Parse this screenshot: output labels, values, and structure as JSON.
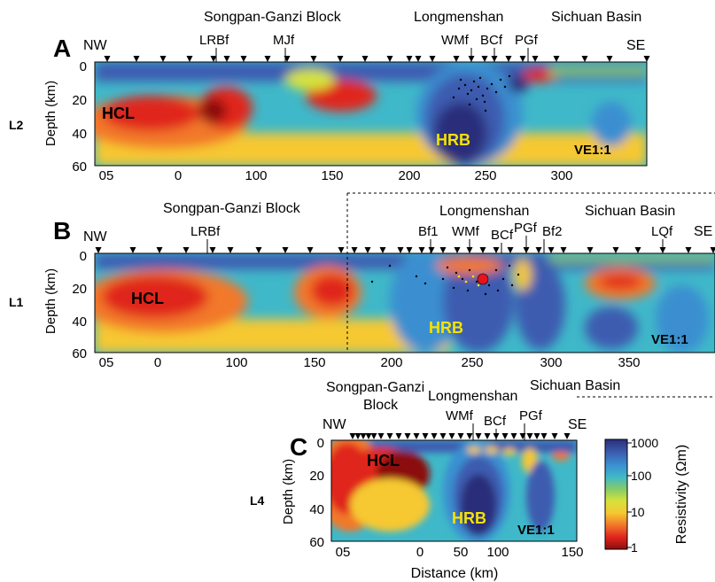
{
  "chart_data": [
    {
      "type": "heatmap",
      "panel_letter": "A",
      "line_label": "L2",
      "region_labels": [
        "Songpan-Ganzi Block",
        "Longmenshan",
        "Sichuan Basin"
      ],
      "fault_labels": [
        "LRBf",
        "MJf",
        "WMf",
        "BCf",
        "PGf"
      ],
      "end_labels": [
        "NW",
        "SE"
      ],
      "ylabel": "Depth (km)",
      "yticks": [
        0,
        20,
        40,
        60
      ],
      "xticks": [
        "05",
        "0",
        "100",
        "150",
        "200",
        "250",
        "300"
      ],
      "xlim": [
        -100,
        350
      ],
      "ylim": [
        0,
        60
      ],
      "annotations": [
        "HCL",
        "HRB",
        "VE1:1"
      ],
      "features": [
        {
          "label": "HCL",
          "resistivity": "low",
          "x": [
            -100,
            110
          ],
          "depth": [
            15,
            55
          ]
        },
        {
          "label": "HRB",
          "resistivity": "high",
          "x": [
            200,
            270
          ],
          "depth": [
            10,
            60
          ]
        }
      ]
    },
    {
      "type": "heatmap",
      "panel_letter": "B",
      "line_label": "L1",
      "region_labels": [
        "Songpan-Ganzi Block",
        "Longmenshan",
        "Sichuan Basin"
      ],
      "fault_labels": [
        "LRBf",
        "Bf1",
        "WMf",
        "BCf",
        "PGf",
        "Bf2",
        "LQf"
      ],
      "end_labels": [
        "NW",
        "SE"
      ],
      "ylabel": "Depth (km)",
      "yticks": [
        0,
        20,
        40,
        60
      ],
      "xticks": [
        "05",
        "0",
        "100",
        "150",
        "200",
        "250",
        "300",
        "350"
      ],
      "xlim": [
        -100,
        390
      ],
      "ylim": [
        0,
        60
      ],
      "annotations": [
        "HCL",
        "HRB",
        "VE1:1"
      ],
      "features": [
        {
          "label": "HCL",
          "resistivity": "low",
          "x": [
            -100,
            160
          ],
          "depth": [
            15,
            55
          ]
        },
        {
          "label": "HRB",
          "resistivity": "high",
          "x": [
            195,
            265
          ],
          "depth": [
            10,
            60
          ]
        }
      ]
    },
    {
      "type": "heatmap",
      "panel_letter": "C",
      "line_label": "L4",
      "region_labels": [
        "Songpan-Ganzi",
        "Block",
        "Longmenshan",
        "Sichuan Basin"
      ],
      "fault_labels": [
        "WMf",
        "BCf",
        "PGf"
      ],
      "end_labels": [
        "NW",
        "SE"
      ],
      "ylabel": "Depth (km)",
      "xlabel": "Distance (km)",
      "yticks": [
        0,
        20,
        40,
        60
      ],
      "xticks": [
        "05",
        "0",
        "50",
        "100",
        "150"
      ],
      "xlim": [
        -50,
        150
      ],
      "ylim": [
        0,
        60
      ],
      "annotations": [
        "HCL",
        "HRB",
        "VE1:1"
      ],
      "features": [
        {
          "label": "HCL",
          "resistivity": "low",
          "x": [
            -50,
            0
          ],
          "depth": [
            5,
            45
          ]
        },
        {
          "label": "HRB",
          "resistivity": "high",
          "x": [
            30,
            110
          ],
          "depth": [
            5,
            60
          ]
        }
      ]
    }
  ],
  "colorbar": {
    "label": "Resistivity (Ωm)",
    "ticks": [
      "1000",
      "100",
      "10",
      "1"
    ],
    "scale": "log",
    "range": [
      1,
      1000
    ],
    "colors": [
      "#8c0d0d",
      "#e0251e",
      "#f2782a",
      "#f6c832",
      "#d6e23c",
      "#84cb6a",
      "#3fb8c9",
      "#3a8fd0",
      "#3c5cb0",
      "#2a2f7a"
    ]
  }
}
